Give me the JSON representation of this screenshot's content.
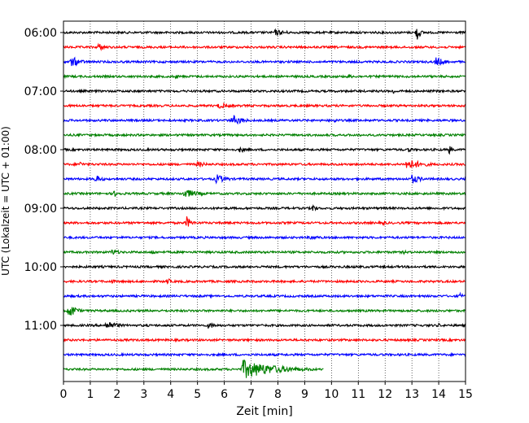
{
  "chart_data": {
    "type": "line",
    "title": "",
    "xlabel": "Zeit  [min]",
    "ylabel": "UTC (Lokalzeit = UTC + 01:00)",
    "xlim": [
      0,
      15
    ],
    "x_ticks": [
      0,
      1,
      2,
      3,
      4,
      5,
      6,
      7,
      8,
      9,
      10,
      11,
      12,
      13,
      14,
      15
    ],
    "x_tick_labels": [
      "0",
      "1",
      "2",
      "3",
      "4",
      "5",
      "6",
      "7",
      "8",
      "9",
      "10",
      "11",
      "12",
      "13",
      "14",
      "15"
    ],
    "y_tick_labels": [
      "06:00",
      "07:00",
      "08:00",
      "09:00",
      "10:00",
      "11:00"
    ],
    "y_tick_rows": [
      0,
      4,
      8,
      12,
      16,
      20
    ],
    "grid": "vertical-dotted",
    "trace_interval_minutes": 15,
    "colors_cycle": [
      "#000000",
      "#ff0000",
      "#0000ff",
      "#008000"
    ],
    "traces": [
      {
        "start": "06:00",
        "color": "#000000",
        "end_min": 15,
        "events": [
          {
            "t": 7.9,
            "amp": 4,
            "dur": 1.2
          },
          {
            "t": 13.2,
            "amp": 11,
            "dur": 0.25
          }
        ]
      },
      {
        "start": "06:15",
        "color": "#ff0000",
        "end_min": 15,
        "events": [
          {
            "t": 1.3,
            "amp": 5,
            "dur": 0.7
          }
        ]
      },
      {
        "start": "06:30",
        "color": "#0000ff",
        "end_min": 15,
        "events": [
          {
            "t": 0.3,
            "amp": 7,
            "dur": 0.8
          },
          {
            "t": 13.9,
            "amp": 6,
            "dur": 0.8
          }
        ]
      },
      {
        "start": "06:45",
        "color": "#008000",
        "end_min": 15,
        "events": [
          {
            "t": 4.2,
            "amp": 3,
            "dur": 0.3
          },
          {
            "t": 10.6,
            "amp": 3,
            "dur": 0.6
          }
        ]
      },
      {
        "start": "07:00",
        "color": "#000000",
        "end_min": 15,
        "events": [
          {
            "t": 12.3,
            "amp": 4,
            "dur": 0.3
          }
        ]
      },
      {
        "start": "07:15",
        "color": "#ff0000",
        "end_min": 15,
        "events": [
          {
            "t": 5.8,
            "amp": 4,
            "dur": 1.2
          }
        ]
      },
      {
        "start": "07:30",
        "color": "#0000ff",
        "end_min": 15,
        "events": [
          {
            "t": 6.3,
            "amp": 7,
            "dur": 0.9
          },
          {
            "t": 10.1,
            "amp": 3,
            "dur": 0.5
          }
        ]
      },
      {
        "start": "07:45",
        "color": "#008000",
        "end_min": 15,
        "events": []
      },
      {
        "start": "08:00",
        "color": "#000000",
        "end_min": 15,
        "events": [
          {
            "t": 6.6,
            "amp": 5,
            "dur": 0.3
          },
          {
            "t": 12.9,
            "amp": 5,
            "dur": 0.2
          },
          {
            "t": 14.4,
            "amp": 6,
            "dur": 0.3
          }
        ]
      },
      {
        "start": "08:15",
        "color": "#ff0000",
        "end_min": 15,
        "events": [
          {
            "t": 0.6,
            "amp": 4,
            "dur": 0.4
          },
          {
            "t": 5.0,
            "amp": 4,
            "dur": 0.8
          },
          {
            "t": 12.8,
            "amp": 7,
            "dur": 1.4
          }
        ]
      },
      {
        "start": "08:30",
        "color": "#0000ff",
        "end_min": 15,
        "events": [
          {
            "t": 1.2,
            "amp": 5,
            "dur": 0.6
          },
          {
            "t": 5.7,
            "amp": 6,
            "dur": 0.9
          },
          {
            "t": 13.0,
            "amp": 6,
            "dur": 0.8
          }
        ]
      },
      {
        "start": "08:45",
        "color": "#008000",
        "end_min": 15,
        "events": [
          {
            "t": 1.9,
            "amp": 4,
            "dur": 0.6
          },
          {
            "t": 4.5,
            "amp": 6,
            "dur": 1.3
          }
        ]
      },
      {
        "start": "09:00",
        "color": "#000000",
        "end_min": 15,
        "events": [
          {
            "t": 9.3,
            "amp": 6,
            "dur": 0.3
          }
        ]
      },
      {
        "start": "09:15",
        "color": "#ff0000",
        "end_min": 15,
        "events": [
          {
            "t": 4.6,
            "amp": 8,
            "dur": 0.4
          },
          {
            "t": 11.9,
            "amp": 3,
            "dur": 0.5
          }
        ]
      },
      {
        "start": "09:30",
        "color": "#0000ff",
        "end_min": 15,
        "events": [
          {
            "t": 9.2,
            "amp": 3,
            "dur": 1.2
          }
        ]
      },
      {
        "start": "09:45",
        "color": "#008000",
        "end_min": 15,
        "events": [
          {
            "t": 1.8,
            "amp": 4,
            "dur": 0.8
          },
          {
            "t": 3.3,
            "amp": 3,
            "dur": 0.6
          },
          {
            "t": 12.7,
            "amp": 3,
            "dur": 0.3
          }
        ]
      },
      {
        "start": "10:00",
        "color": "#000000",
        "end_min": 15,
        "events": []
      },
      {
        "start": "10:15",
        "color": "#ff0000",
        "end_min": 15,
        "events": [
          {
            "t": 1.8,
            "amp": 3,
            "dur": 0.4
          },
          {
            "t": 3.9,
            "amp": 5,
            "dur": 0.2
          }
        ]
      },
      {
        "start": "10:30",
        "color": "#0000ff",
        "end_min": 15,
        "events": [
          {
            "t": 14.8,
            "amp": 4,
            "dur": 0.3
          }
        ]
      },
      {
        "start": "10:45",
        "color": "#008000",
        "end_min": 15,
        "events": [
          {
            "t": 0.2,
            "amp": 10,
            "dur": 0.6
          }
        ]
      },
      {
        "start": "11:00",
        "color": "#000000",
        "end_min": 15,
        "events": [
          {
            "t": 1.6,
            "amp": 6,
            "dur": 1.0
          },
          {
            "t": 5.4,
            "amp": 4,
            "dur": 0.9
          },
          {
            "t": 14.0,
            "amp": 3,
            "dur": 0.2
          }
        ]
      },
      {
        "start": "11:15",
        "color": "#ff0000",
        "end_min": 15,
        "events": []
      },
      {
        "start": "11:30",
        "color": "#0000ff",
        "end_min": 15,
        "events": []
      },
      {
        "start": "11:45",
        "color": "#008000",
        "end_min": 9.7,
        "events": [
          {
            "t": 6.7,
            "amp": 12,
            "dur": 2.8
          }
        ]
      }
    ]
  }
}
